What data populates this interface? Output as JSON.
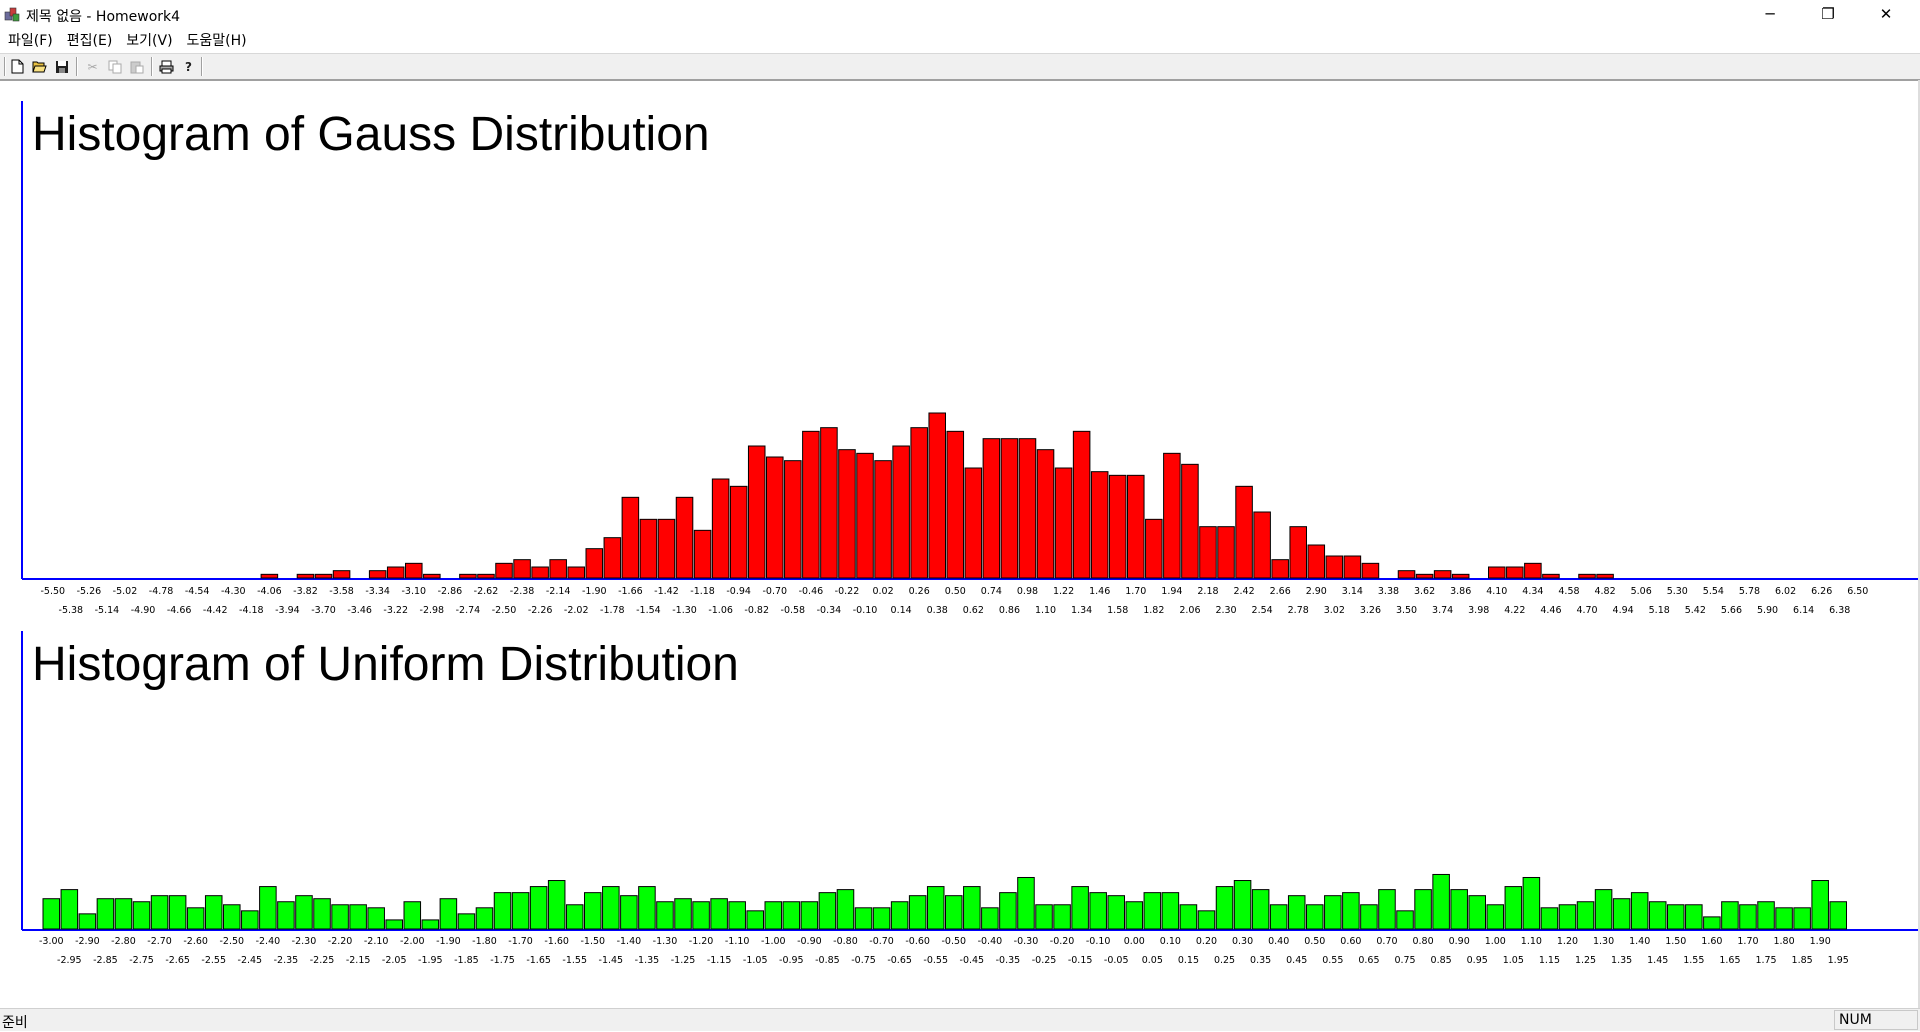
{
  "window": {
    "title": "제목 없음 - Homework4",
    "minimize_symbol": "─",
    "restore_symbol": "❐",
    "close_symbol": "✕"
  },
  "menu": {
    "items": [
      "파일(F)",
      "편집(E)",
      "보기(V)",
      "도움말(H)"
    ]
  },
  "toolbar": {
    "buttons": [
      "new-file-icon",
      "open-folder-icon",
      "save-icon",
      "cut-icon",
      "copy-icon",
      "paste-icon",
      "print-icon",
      "help-icon"
    ]
  },
  "status": {
    "text": "준비",
    "indicator": "NUM"
  },
  "colors": {
    "gauss_bar": "#ff0000",
    "uniform_bar": "#00ff00",
    "axis": "#0000ff"
  },
  "chart_data": [
    {
      "type": "bar",
      "title": "Histogram of Gauss Distribution",
      "bin_start": -5.5,
      "bin_width": 0.12,
      "bin_count": 101,
      "label_decimals": 2,
      "values": [
        0,
        0,
        0,
        0,
        0,
        0,
        0,
        0,
        0,
        0,
        0,
        0,
        1,
        0,
        1,
        1,
        2,
        0,
        2,
        3,
        4,
        1,
        0,
        1,
        1,
        4,
        5,
        3,
        5,
        3,
        8,
        11,
        22,
        16,
        16,
        22,
        13,
        27,
        25,
        36,
        33,
        32,
        40,
        41,
        35,
        34,
        32,
        36,
        41,
        45,
        40,
        30,
        38,
        38,
        38,
        35,
        30,
        40,
        29,
        28,
        28,
        16,
        34,
        31,
        14,
        14,
        25,
        18,
        5,
        14,
        9,
        6,
        6,
        4,
        0,
        2,
        1,
        2,
        1,
        0,
        3,
        3,
        4,
        1,
        0,
        1,
        1,
        0,
        0,
        0,
        0,
        0,
        0,
        0,
        0,
        0,
        0,
        0,
        0,
        0,
        0
      ],
      "ylim": [
        0,
        45
      ]
    },
    {
      "type": "bar",
      "title": "Histogram of Uniform Distribution",
      "bin_start": -3.0,
      "bin_width": 0.05,
      "bin_count": 100,
      "label_decimals": 2,
      "values": [
        10,
        13,
        5,
        10,
        10,
        9,
        11,
        11,
        7,
        11,
        8,
        6,
        14,
        9,
        11,
        10,
        8,
        8,
        7,
        3,
        9,
        3,
        10,
        5,
        7,
        12,
        12,
        14,
        16,
        8,
        12,
        14,
        11,
        14,
        9,
        10,
        9,
        10,
        9,
        6,
        9,
        9,
        9,
        12,
        13,
        7,
        7,
        9,
        11,
        14,
        11,
        14,
        7,
        12,
        17,
        8,
        8,
        14,
        12,
        11,
        9,
        12,
        12,
        8,
        6,
        14,
        16,
        13,
        8,
        11,
        8,
        11,
        12,
        8,
        13,
        6,
        13,
        18,
        13,
        11,
        8,
        14,
        17,
        7,
        8,
        9,
        13,
        10,
        12,
        9,
        8,
        8,
        4,
        9,
        8,
        9,
        7,
        7,
        16,
        9
      ],
      "ylim": [
        0,
        40
      ]
    }
  ]
}
